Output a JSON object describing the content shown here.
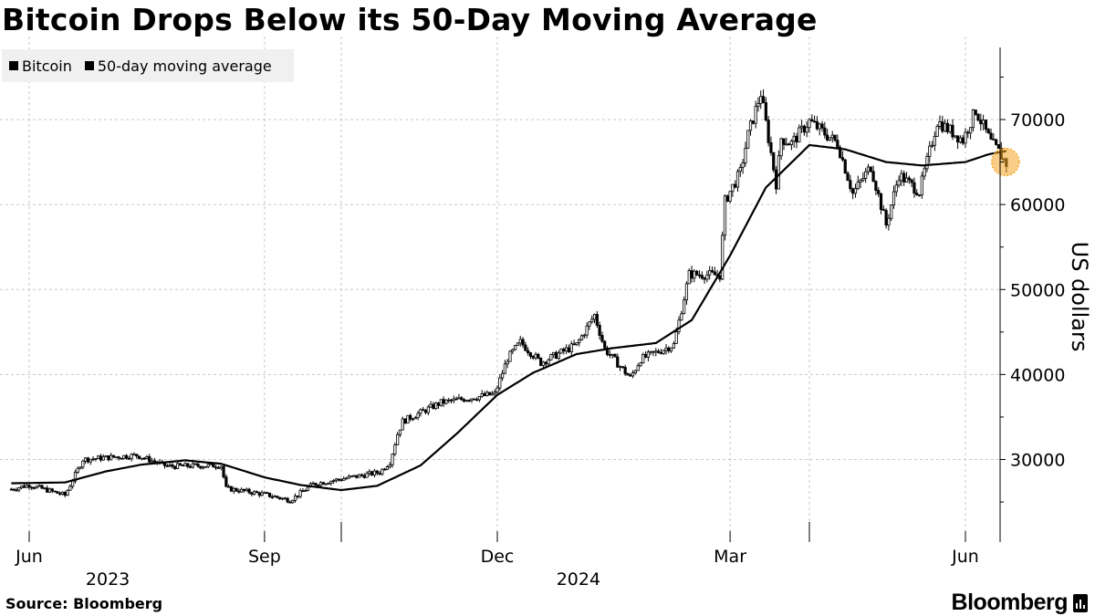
{
  "chart_data": {
    "type": "candlestick+line",
    "title": "Bitcoin Drops Below its 50-Day Moving Average",
    "legend": [
      "Bitcoin",
      "50-day moving average"
    ],
    "ylabel": "US dollars",
    "ylim": [
      20000,
      78000
    ],
    "yticks": [
      30000,
      40000,
      50000,
      60000,
      70000
    ],
    "ytick_labels": [
      "30000",
      "40000",
      "50000",
      "60000",
      "70000"
    ],
    "x_range": [
      "2023-05-25",
      "2024-06-10"
    ],
    "month_ticks": [
      {
        "date": "2023-06-01",
        "label": "Jun"
      },
      {
        "date": "2023-09-01",
        "label": "Sep"
      },
      {
        "date": "2023-12-01",
        "label": "Dec"
      },
      {
        "date": "2024-03-01",
        "label": "Mar"
      },
      {
        "date": "2024-06-01",
        "label": "Jun"
      }
    ],
    "year_ticks": [
      {
        "date": "2023-07-01",
        "label": "2023"
      },
      {
        "date": "2024-01-01",
        "label": "2024"
      }
    ],
    "year_boundaries": [
      "2023-10-01",
      "2024-04-01"
    ],
    "grid": true,
    "bitcoin_close_anchors": [
      [
        "2023-05-25",
        26500
      ],
      [
        "2023-06-01",
        27000
      ],
      [
        "2023-06-15",
        25800
      ],
      [
        "2023-06-22",
        30000
      ],
      [
        "2023-07-13",
        30500
      ],
      [
        "2023-07-25",
        29200
      ],
      [
        "2023-08-15",
        29300
      ],
      [
        "2023-08-17",
        26600
      ],
      [
        "2023-09-01",
        25900
      ],
      [
        "2023-09-11",
        25200
      ],
      [
        "2023-09-20",
        27100
      ],
      [
        "2023-10-01",
        27700
      ],
      [
        "2023-10-16",
        28500
      ],
      [
        "2023-10-20",
        29700
      ],
      [
        "2023-10-23",
        33000
      ],
      [
        "2023-10-25",
        34500
      ],
      [
        "2023-11-09",
        36700
      ],
      [
        "2023-11-30",
        37700
      ],
      [
        "2023-12-05",
        41900
      ],
      [
        "2023-12-10",
        43800
      ],
      [
        "2023-12-18",
        41400
      ],
      [
        "2024-01-01",
        43500
      ],
      [
        "2024-01-08",
        47000
      ],
      [
        "2024-01-12",
        43000
      ],
      [
        "2024-01-22",
        39600
      ],
      [
        "2024-01-26",
        41800
      ],
      [
        "2024-02-08",
        43500
      ],
      [
        "2024-02-14",
        51800
      ],
      [
        "2024-02-26",
        51700
      ],
      [
        "2024-02-28",
        60400
      ],
      [
        "2024-03-05",
        63800
      ],
      [
        "2024-03-08",
        68200
      ],
      [
        "2024-03-13",
        73100
      ],
      [
        "2024-03-19",
        62500
      ],
      [
        "2024-03-21",
        67800
      ],
      [
        "2024-03-25",
        67200
      ],
      [
        "2024-04-01",
        69800
      ],
      [
        "2024-04-12",
        67200
      ],
      [
        "2024-04-18",
        61300
      ],
      [
        "2024-04-25",
        64500
      ],
      [
        "2024-05-01",
        57600
      ],
      [
        "2024-05-06",
        63500
      ],
      [
        "2024-05-14",
        61500
      ],
      [
        "2024-05-21",
        69800
      ],
      [
        "2024-05-31",
        67600
      ],
      [
        "2024-06-05",
        71100
      ],
      [
        "2024-06-11",
        67300
      ],
      [
        "2024-06-14",
        66200
      ],
      [
        "2024-06-17",
        64800
      ]
    ],
    "moving_average_anchors": [
      [
        "2023-05-25",
        27200
      ],
      [
        "2023-06-15",
        27300
      ],
      [
        "2023-07-01",
        28600
      ],
      [
        "2023-07-15",
        29400
      ],
      [
        "2023-08-01",
        29900
      ],
      [
        "2023-08-15",
        29500
      ],
      [
        "2023-09-01",
        27900
      ],
      [
        "2023-09-15",
        27000
      ],
      [
        "2023-10-01",
        26400
      ],
      [
        "2023-10-15",
        26900
      ],
      [
        "2023-11-01",
        29300
      ],
      [
        "2023-11-15",
        33000
      ],
      [
        "2023-12-01",
        37600
      ],
      [
        "2023-12-15",
        40200
      ],
      [
        "2024-01-01",
        42400
      ],
      [
        "2024-01-15",
        43100
      ],
      [
        "2024-02-01",
        43700
      ],
      [
        "2024-02-15",
        46400
      ],
      [
        "2024-03-01",
        54000
      ],
      [
        "2024-03-15",
        62000
      ],
      [
        "2024-04-01",
        67000
      ],
      [
        "2024-04-15",
        66500
      ],
      [
        "2024-05-01",
        65000
      ],
      [
        "2024-05-15",
        64600
      ],
      [
        "2024-06-01",
        65000
      ],
      [
        "2024-06-10",
        65900
      ],
      [
        "2024-06-17",
        66300
      ]
    ],
    "highlight": {
      "date": "2024-06-17",
      "value": 64800
    }
  },
  "legend_labels": {
    "bitcoin": "Bitcoin",
    "ma": "50-day moving average"
  },
  "footer": {
    "source": "Source: Bloomberg",
    "brand": "Bloomberg"
  },
  "colors": {
    "candle": "#000000",
    "ma": "#000000",
    "grid": "#cccccc",
    "highlight": "#f5a623",
    "legend_bg": "#f0f0f0"
  }
}
